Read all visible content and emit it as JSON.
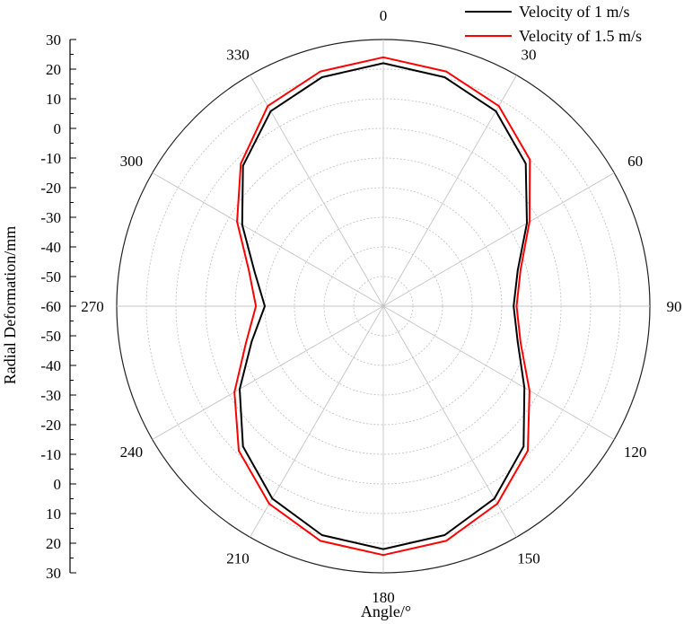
{
  "chart_data": {
    "type": "polar-line",
    "xlabel": "Angle/°",
    "ylabel": "Radial Deformation/mm",
    "angle_ticks": [
      "0",
      "30",
      "60",
      "90",
      "120",
      "150",
      "180",
      "210",
      "240",
      "270",
      "300",
      "330"
    ],
    "radial_axis_ticks": [
      "30",
      "20",
      "10",
      "0",
      "-10",
      "-20",
      "-30",
      "-40",
      "-50",
      "-60",
      "-50",
      "-40",
      "-30",
      "-20",
      "-10",
      "0",
      "10",
      "20",
      "30"
    ],
    "radial_range": [
      -60,
      30
    ],
    "angles": [
      0,
      15,
      30,
      45,
      60,
      75,
      90,
      105,
      120,
      135,
      150,
      165,
      180,
      195,
      210,
      225,
      240,
      255,
      270,
      285,
      300,
      315,
      330,
      345
    ],
    "series": [
      {
        "name": "Velocity of 1 m/s",
        "color": "#000000",
        "values": [
          22,
          20,
          16,
          8,
          -4,
          -13,
          -16,
          -13,
          -5,
          7,
          15,
          20,
          22,
          20,
          15,
          7,
          -4,
          -14,
          -20,
          -15,
          -5,
          7,
          16,
          20
        ]
      },
      {
        "name": "Velocity of 1.5 m/s",
        "color": "#ff0000",
        "values": [
          24,
          22,
          18,
          10,
          -3,
          -12,
          -15,
          -12,
          -3,
          9,
          17,
          22,
          24,
          22,
          17,
          9,
          -2,
          -12,
          -17,
          -13,
          -3,
          8,
          18,
          22
        ]
      }
    ],
    "grid": true,
    "legend_position": "top-right"
  }
}
